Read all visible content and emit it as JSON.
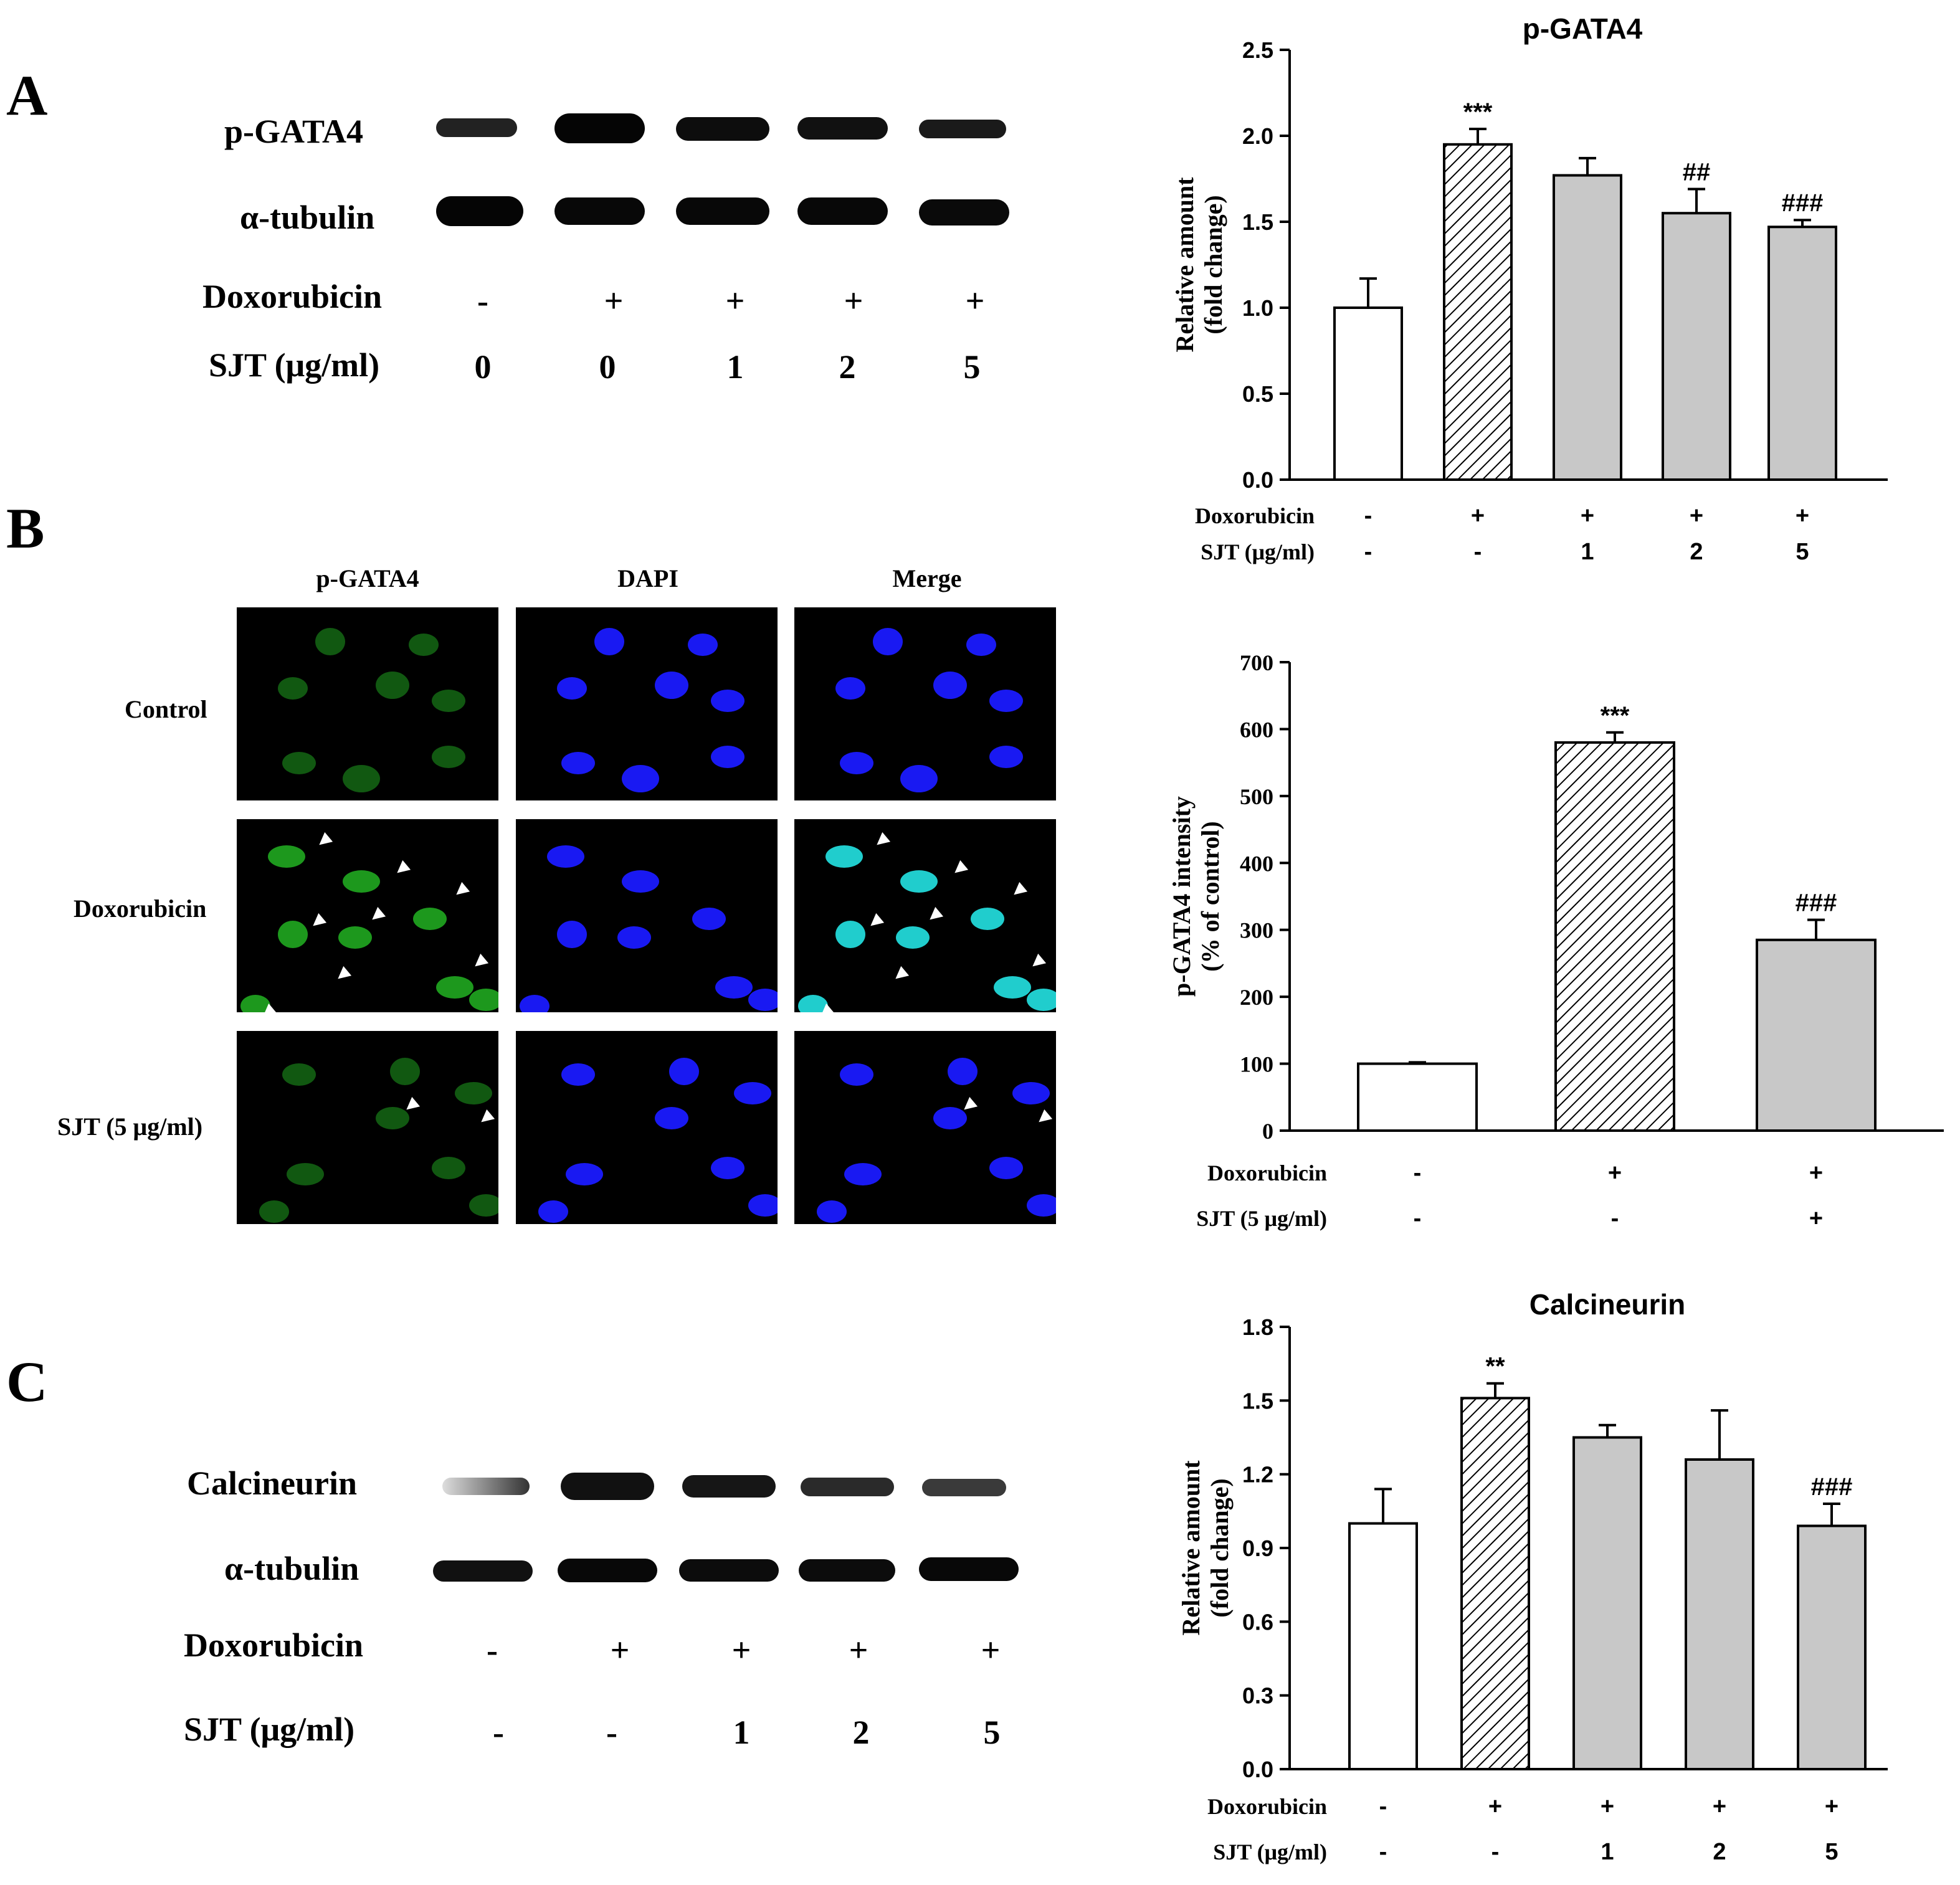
{
  "panels": {
    "A": {
      "letter": "A",
      "blot": {
        "rows": [
          "p-GATA4",
          "α-tubulin"
        ],
        "condition_labels": {
          "doxorubicin": "Doxorubicin",
          "sjt": "SJT (μg/ml)"
        },
        "doxorubicin": [
          "-",
          "+",
          "+",
          "+",
          "+"
        ],
        "sjt": [
          "0",
          "0",
          "1",
          "2",
          "5"
        ]
      }
    },
    "B": {
      "letter": "B",
      "micro": {
        "columns": [
          "p-GATA4",
          "DAPI",
          "Merge"
        ],
        "rows": [
          "Control",
          "Doxorubicin",
          "SJT (5 μg/ml)"
        ]
      }
    },
    "C": {
      "letter": "C",
      "blot": {
        "rows": [
          "Calcineurin",
          "α-tubulin"
        ],
        "condition_labels": {
          "doxorubicin": "Doxorubicin",
          "sjt": "SJT (μg/ml)"
        },
        "doxorubicin": [
          "-",
          "+",
          "+",
          "+",
          "+"
        ],
        "sjt": [
          "-",
          "-",
          "1",
          "2",
          "5"
        ]
      }
    }
  },
  "chart_data": [
    {
      "type": "bar",
      "title": "p-GATA4",
      "ylabel": "Relative amount (fold change)",
      "ylim": [
        0,
        2.5
      ],
      "yticks": [
        "0.0",
        "0.5",
        "1.0",
        "1.5",
        "2.0",
        "2.5"
      ],
      "ytick_values": [
        0,
        0.5,
        1.0,
        1.5,
        2.0,
        2.5
      ],
      "values": [
        1.0,
        1.95,
        1.77,
        1.55,
        1.47
      ],
      "errors": [
        0.17,
        0.09,
        0.1,
        0.14,
        0.04
      ],
      "annotations": [
        "",
        "***",
        "",
        "##",
        "###"
      ],
      "fills": [
        "white",
        "hatch",
        "gray",
        "gray",
        "gray"
      ],
      "row_labels": {
        "doxorubicin": "Doxorubicin",
        "sjt": "SJT (μg/ml)"
      },
      "doxorubicin": [
        "-",
        "+",
        "+",
        "+",
        "+"
      ],
      "sjt": [
        "-",
        "-",
        "1",
        "2",
        "5"
      ]
    },
    {
      "type": "bar",
      "title": "",
      "ylabel": "p-GATA4 intensity (% of control)",
      "ylim": [
        0,
        700
      ],
      "yticks": [
        "0",
        "100",
        "200",
        "300",
        "400",
        "500",
        "600",
        "700"
      ],
      "ytick_values": [
        0,
        100,
        200,
        300,
        400,
        500,
        600,
        700
      ],
      "values": [
        100,
        580,
        285
      ],
      "errors": [
        2,
        15,
        30
      ],
      "annotations": [
        "",
        "***",
        "###"
      ],
      "fills": [
        "white",
        "hatch",
        "gray"
      ],
      "row_labels": {
        "doxorubicin": "Doxorubicin",
        "sjt": "SJT (5 μg/ml)"
      },
      "doxorubicin": [
        "-",
        "+",
        "+"
      ],
      "sjt": [
        "-",
        "-",
        "+"
      ]
    },
    {
      "type": "bar",
      "title": "Calcineurin",
      "ylabel": "Relative amount (fold change)",
      "ylim": [
        0,
        1.8
      ],
      "yticks": [
        "0.0",
        "0.3",
        "0.6",
        "0.9",
        "1.2",
        "1.5",
        "1.8"
      ],
      "ytick_values": [
        0,
        0.3,
        0.6,
        0.9,
        1.2,
        1.5,
        1.8
      ],
      "values": [
        1.0,
        1.51,
        1.35,
        1.26,
        0.99
      ],
      "errors": [
        0.14,
        0.06,
        0.05,
        0.2,
        0.09
      ],
      "annotations": [
        "",
        "**",
        "",
        "",
        "###"
      ],
      "fills": [
        "white",
        "hatch",
        "gray",
        "gray",
        "gray"
      ],
      "row_labels": {
        "doxorubicin": "Doxorubicin",
        "sjt": "SJT (μg/ml)"
      },
      "doxorubicin": [
        "-",
        "+",
        "+",
        "+",
        "+"
      ],
      "sjt": [
        "-",
        "-",
        "1",
        "2",
        "5"
      ]
    }
  ],
  "colors": {
    "bar_gray": "#c8c8c8",
    "green": "#1fa01f",
    "blue": "#1a1aff",
    "cyan": "#22d8d8"
  }
}
